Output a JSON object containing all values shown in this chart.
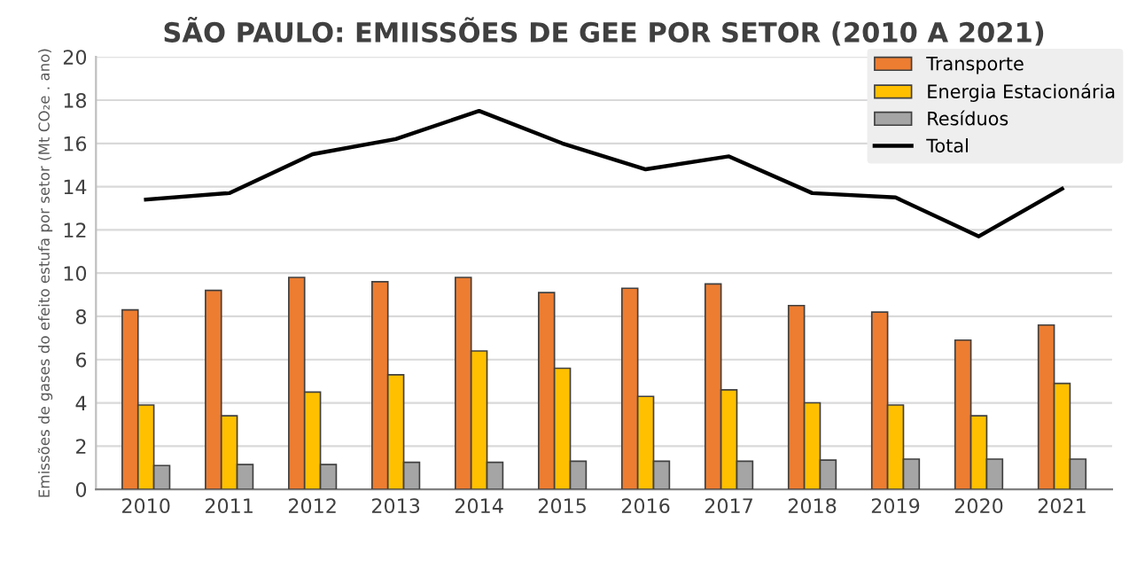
{
  "chart_data": {
    "type": "bar",
    "title": "SÃO PAULO: EMIISSÕES DE GEE POR SETOR (2010 A 2021)",
    "ylabel": "Emissões de gases do efeito estufa por setor (Mt CO₂e . ano)",
    "categories": [
      "2010",
      "2011",
      "2012",
      "2013",
      "2014",
      "2015",
      "2016",
      "2017",
      "2018",
      "2019",
      "2020",
      "2021"
    ],
    "series": [
      {
        "name": "Transporte",
        "color": "#ed7d31",
        "values": [
          8.3,
          9.2,
          9.8,
          9.6,
          9.8,
          9.1,
          9.3,
          9.5,
          8.5,
          8.2,
          6.9,
          7.6
        ]
      },
      {
        "name": "Energia Estacionária",
        "color": "#ffc000",
        "values": [
          3.9,
          3.4,
          4.5,
          5.3,
          6.4,
          5.6,
          4.3,
          4.6,
          4.0,
          3.9,
          3.4,
          4.9
        ]
      },
      {
        "name": "Resíduos",
        "color": "#a5a5a5",
        "values": [
          1.1,
          1.15,
          1.15,
          1.25,
          1.25,
          1.3,
          1.3,
          1.3,
          1.35,
          1.4,
          1.4,
          1.4
        ]
      },
      {
        "name": "Total",
        "color": "#000000",
        "type": "line",
        "values": [
          13.4,
          13.7,
          15.5,
          16.2,
          17.5,
          16.0,
          14.8,
          15.4,
          13.7,
          13.5,
          11.7,
          13.9
        ]
      }
    ],
    "ylim": [
      0,
      20
    ],
    "yticks": [
      0,
      2,
      4,
      6,
      8,
      10,
      12,
      14,
      16,
      18,
      20
    ],
    "grid": "y",
    "legend": "top right",
    "marker": "none"
  }
}
